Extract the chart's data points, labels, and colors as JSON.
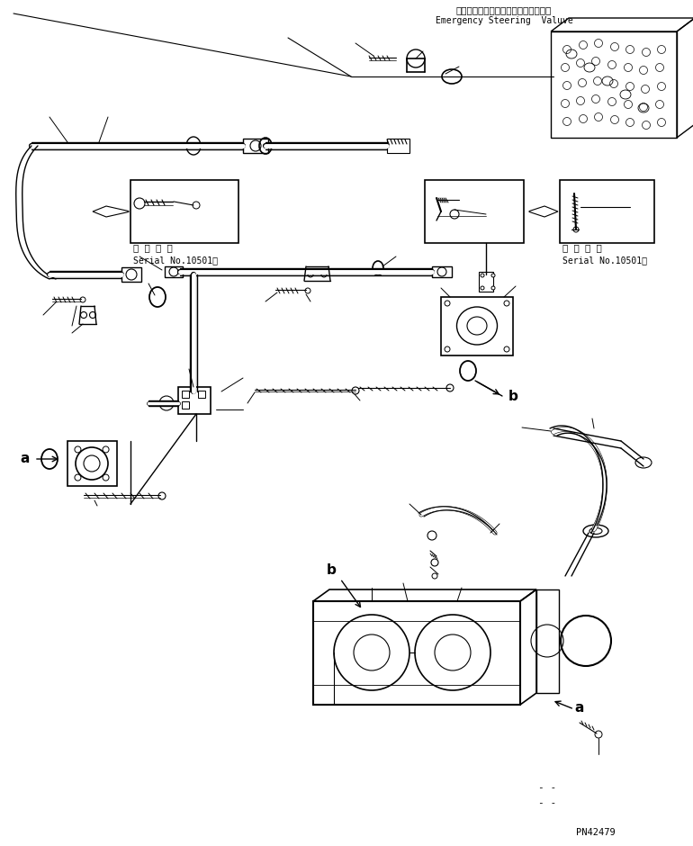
{
  "title_jp": "エマージェンシーステアリングバルブ",
  "title_en": "Emergency Steering  Valuve",
  "serial_text_jp": "適 用 号 機",
  "serial_text_en": "Serial No.10501～",
  "label_a": "a",
  "label_b": "b",
  "part_number": "PN42479",
  "dash_text": "- -",
  "bg_color": "#ffffff",
  "line_color": "#000000",
  "fig_width": 7.7,
  "fig_height": 9.4
}
